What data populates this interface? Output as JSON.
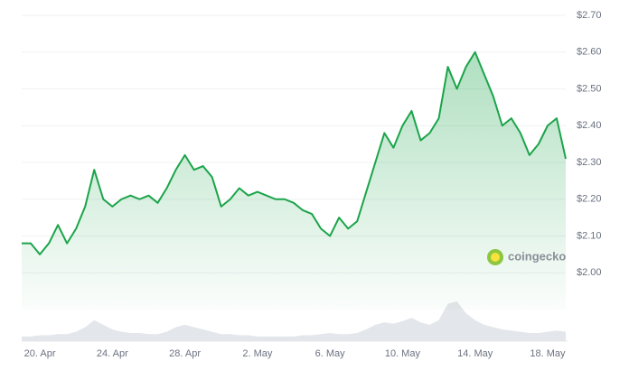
{
  "chart_data": {
    "type": "line",
    "categories": [
      null,
      null,
      "20. Apr",
      null,
      null,
      null,
      null,
      null,
      null,
      null,
      "24. Apr",
      null,
      null,
      null,
      null,
      null,
      null,
      null,
      "28. Apr",
      null,
      null,
      null,
      null,
      null,
      null,
      null,
      "2. May",
      null,
      null,
      null,
      null,
      null,
      null,
      null,
      "6. May",
      null,
      null,
      null,
      null,
      null,
      null,
      null,
      "10. May",
      null,
      null,
      null,
      null,
      null,
      null,
      null,
      "14. May",
      null,
      null,
      null,
      null,
      null,
      null,
      null,
      "18. May",
      null,
      null
    ],
    "series": [
      {
        "color": "#1ba44a",
        "values": [
          2.08,
          2.08,
          2.05,
          2.08,
          2.13,
          2.08,
          2.12,
          2.18,
          2.28,
          2.2,
          2.18,
          2.2,
          2.21,
          2.2,
          2.21,
          2.19,
          2.23,
          2.28,
          2.32,
          2.28,
          2.29,
          2.26,
          2.18,
          2.2,
          2.23,
          2.21,
          2.22,
          2.21,
          2.2,
          2.2,
          2.19,
          2.17,
          2.16,
          2.12,
          2.1,
          2.15,
          2.12,
          2.14,
          2.22,
          2.3,
          2.38,
          2.34,
          2.4,
          2.44,
          2.36,
          2.38,
          2.42,
          2.56,
          2.5,
          2.56,
          2.6,
          2.54,
          2.48,
          2.4,
          2.42,
          2.38,
          2.32,
          2.35,
          2.4,
          2.42,
          2.31
        ]
      },
      {
        "color": "#e3e6ea",
        "values": [
          4,
          4,
          5,
          5,
          6,
          6,
          8,
          12,
          18,
          14,
          10,
          8,
          7,
          7,
          6,
          6,
          8,
          12,
          14,
          12,
          10,
          8,
          6,
          6,
          5,
          5,
          4,
          4,
          4,
          4,
          4,
          5,
          5,
          6,
          7,
          6,
          6,
          7,
          10,
          14,
          16,
          15,
          17,
          20,
          16,
          14,
          18,
          32,
          34,
          24,
          18,
          14,
          12,
          10,
          9,
          8,
          7,
          7,
          8,
          9,
          8
        ]
      }
    ],
    "ylim": [
      1.9,
      2.7
    ],
    "yticks": [
      {
        "value": 2.0,
        "label": "$2.00"
      },
      {
        "value": 2.1,
        "label": "$2.10"
      },
      {
        "value": 2.2,
        "label": "$2.20"
      },
      {
        "value": 2.3,
        "label": "$2.30"
      },
      {
        "value": 2.4,
        "label": "$2.40"
      },
      {
        "value": 2.5,
        "label": "$2.50"
      },
      {
        "value": 2.6,
        "label": "$2.60"
      },
      {
        "value": 2.7,
        "label": "$2.70"
      }
    ],
    "grid": true,
    "watermark": "coingecko"
  }
}
